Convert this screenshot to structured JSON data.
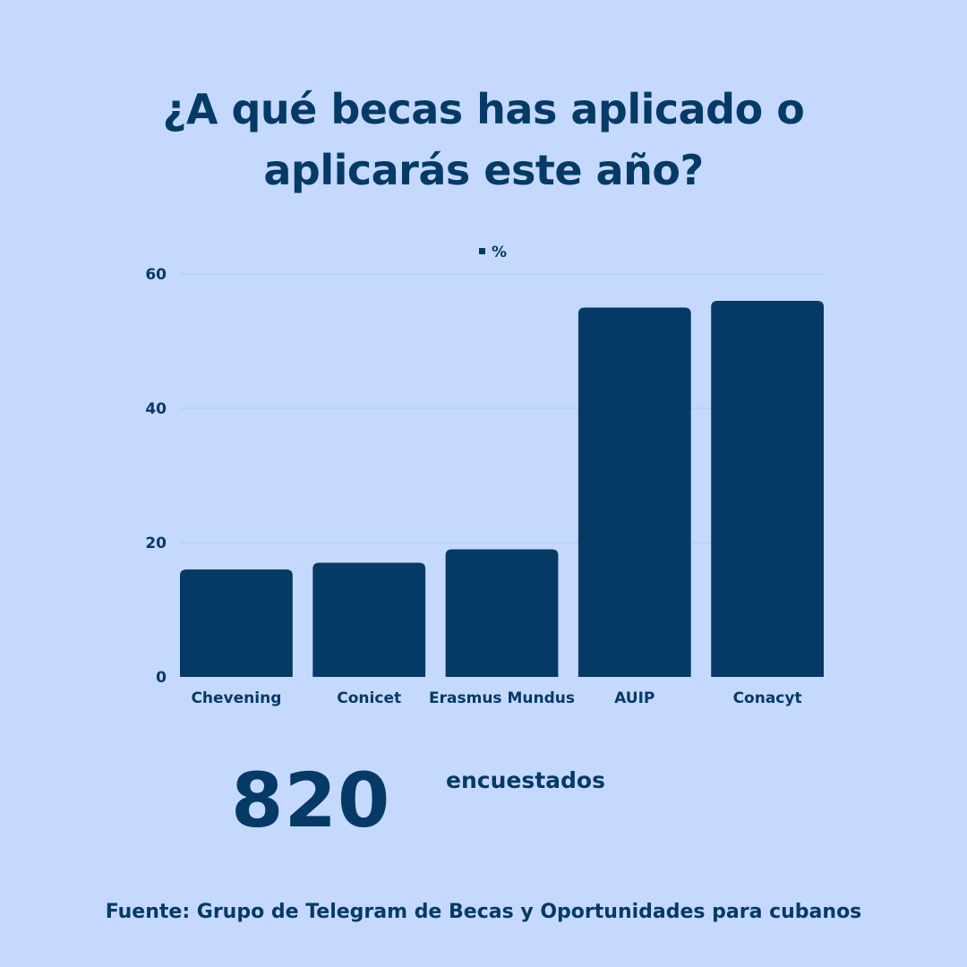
{
  "title_lines": [
    "¿A qué becas has aplicado o",
    "aplicarás este año?"
  ],
  "chart_data": {
    "type": "bar",
    "categories": [
      "Chevening",
      "Conicet",
      "Erasmus Mundus",
      "AUIP",
      "Conacyt"
    ],
    "series": [
      {
        "name": "%",
        "values": [
          16,
          17,
          19,
          55,
          56
        ]
      }
    ],
    "ylim": [
      0,
      60
    ],
    "yticks": [
      0,
      20,
      40,
      60
    ],
    "grid": true,
    "legend": "top-center"
  },
  "colors": {
    "background": "#c5d9ff",
    "bar": "#053a66",
    "gridline": "#aec6ec",
    "text": "#053a66"
  },
  "respondents": {
    "count": "820",
    "label": "encuestados"
  },
  "source": "Fuente: Grupo de Telegram de Becas y Oportunidades para cubanos"
}
